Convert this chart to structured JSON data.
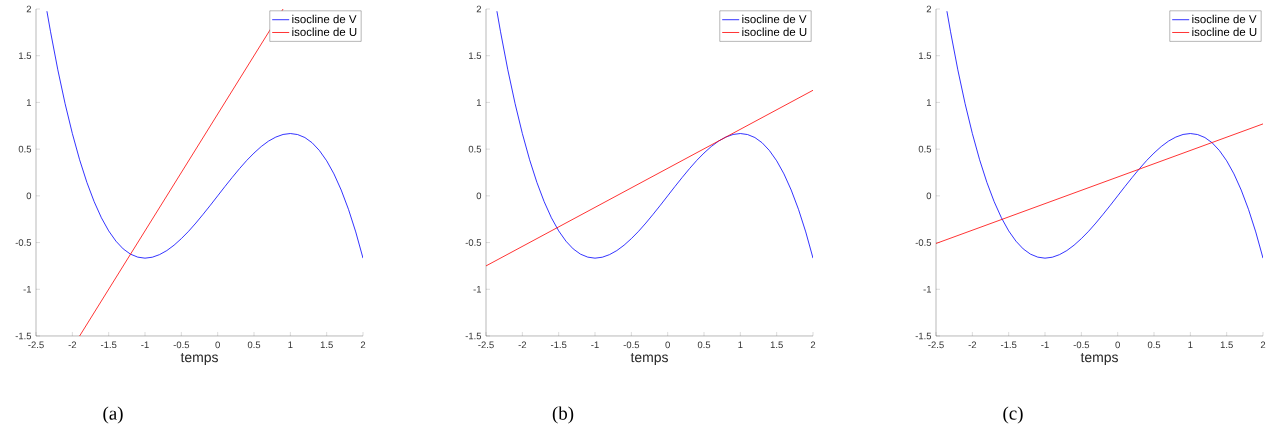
{
  "chart_data": [
    {
      "type": "line",
      "xlabel": "temps",
      "annotations": [
        "(a)"
      ],
      "legend": "top right",
      "grid": false,
      "xlim": [
        -2.5,
        2
      ],
      "ylim": [
        -1.5,
        2
      ],
      "xticks": [
        -2.5,
        -2,
        -1.5,
        -1,
        -0.5,
        0,
        0.5,
        1,
        1.5,
        2
      ],
      "yticks": [
        -1.5,
        -1,
        -0.5,
        0,
        0.5,
        1,
        1.5,
        2
      ],
      "series": [
        {
          "name": "isocline de V",
          "color": "#0000ff",
          "x": [
            -2.35,
            -2.3,
            -2.2,
            -2.1,
            -2.0,
            -1.9,
            -1.8,
            -1.7,
            -1.6,
            -1.5,
            -1.4,
            -1.3,
            -1.2,
            -1.1,
            -1.0,
            -0.9,
            -0.8,
            -0.7,
            -0.6,
            -0.5,
            -0.4,
            -0.3,
            -0.2,
            -0.1,
            0,
            0.1,
            0.2,
            0.3,
            0.4,
            0.5,
            0.6,
            0.7,
            0.8,
            0.9,
            1.0,
            1.1,
            1.2,
            1.3,
            1.4,
            1.5,
            1.6,
            1.7,
            1.8,
            1.9,
            2.0
          ],
          "values": [
            1.976,
            1.756,
            1.349,
            0.987,
            0.667,
            0.386,
            0.144,
            -0.062,
            -0.235,
            -0.375,
            -0.485,
            -0.568,
            -0.624,
            -0.656,
            -0.667,
            -0.657,
            -0.629,
            -0.586,
            -0.528,
            -0.458,
            -0.379,
            -0.291,
            -0.197,
            -0.1,
            0,
            0.1,
            0.197,
            0.291,
            0.379,
            0.458,
            0.528,
            0.586,
            0.629,
            0.657,
            0.667,
            0.656,
            0.624,
            0.568,
            0.485,
            0.375,
            0.235,
            0.062,
            -0.144,
            -0.386,
            -0.667
          ]
        },
        {
          "name": "isocline de U",
          "color": "#ff0000",
          "x": [
            -1.9,
            0.9
          ],
          "values": [
            -1.5,
            2
          ]
        }
      ]
    },
    {
      "type": "line",
      "xlabel": "temps",
      "annotations": [
        "(b)"
      ],
      "legend": "top right",
      "grid": false,
      "xlim": [
        -2.5,
        2
      ],
      "ylim": [
        -1.5,
        2
      ],
      "xticks": [
        -2.5,
        -2,
        -1.5,
        -1,
        -0.5,
        0,
        0.5,
        1,
        1.5,
        2
      ],
      "yticks": [
        -1.5,
        -1,
        -0.5,
        0,
        0.5,
        1,
        1.5,
        2
      ],
      "series": [
        {
          "name": "isocline de V",
          "color": "#0000ff",
          "x": [
            -2.35,
            -2.3,
            -2.2,
            -2.1,
            -2.0,
            -1.9,
            -1.8,
            -1.7,
            -1.6,
            -1.5,
            -1.4,
            -1.3,
            -1.2,
            -1.1,
            -1.0,
            -0.9,
            -0.8,
            -0.7,
            -0.6,
            -0.5,
            -0.4,
            -0.3,
            -0.2,
            -0.1,
            0,
            0.1,
            0.2,
            0.3,
            0.4,
            0.5,
            0.6,
            0.7,
            0.8,
            0.9,
            1.0,
            1.1,
            1.2,
            1.3,
            1.4,
            1.5,
            1.6,
            1.7,
            1.8,
            1.9,
            2.0
          ],
          "values": [
            1.976,
            1.756,
            1.349,
            0.987,
            0.667,
            0.386,
            0.144,
            -0.062,
            -0.235,
            -0.375,
            -0.485,
            -0.568,
            -0.624,
            -0.656,
            -0.667,
            -0.657,
            -0.629,
            -0.586,
            -0.528,
            -0.458,
            -0.379,
            -0.291,
            -0.197,
            -0.1,
            0,
            0.1,
            0.197,
            0.291,
            0.379,
            0.458,
            0.528,
            0.586,
            0.629,
            0.657,
            0.667,
            0.656,
            0.624,
            0.568,
            0.485,
            0.375,
            0.235,
            0.062,
            -0.144,
            -0.386,
            -0.667
          ]
        },
        {
          "name": "isocline de U",
          "color": "#ff0000",
          "x": [
            -2.5,
            2
          ],
          "values": [
            -0.75,
            1.13
          ]
        }
      ]
    },
    {
      "type": "line",
      "xlabel": "temps",
      "annotations": [
        "(c)"
      ],
      "legend": "top right",
      "grid": false,
      "xlim": [
        -2.5,
        2
      ],
      "ylim": [
        -1.5,
        2
      ],
      "xticks": [
        -2.5,
        -2,
        -1.5,
        -1,
        -0.5,
        0,
        0.5,
        1,
        1.5,
        2
      ],
      "yticks": [
        -1.5,
        -1,
        -0.5,
        0,
        0.5,
        1,
        1.5,
        2
      ],
      "series": [
        {
          "name": "isocline de V",
          "color": "#0000ff",
          "x": [
            -2.35,
            -2.3,
            -2.2,
            -2.1,
            -2.0,
            -1.9,
            -1.8,
            -1.7,
            -1.6,
            -1.5,
            -1.4,
            -1.3,
            -1.2,
            -1.1,
            -1.0,
            -0.9,
            -0.8,
            -0.7,
            -0.6,
            -0.5,
            -0.4,
            -0.3,
            -0.2,
            -0.1,
            0,
            0.1,
            0.2,
            0.3,
            0.4,
            0.5,
            0.6,
            0.7,
            0.8,
            0.9,
            1.0,
            1.1,
            1.2,
            1.3,
            1.4,
            1.5,
            1.6,
            1.7,
            1.8,
            1.9,
            2.0
          ],
          "values": [
            1.976,
            1.756,
            1.349,
            0.987,
            0.667,
            0.386,
            0.144,
            -0.062,
            -0.235,
            -0.375,
            -0.485,
            -0.568,
            -0.624,
            -0.656,
            -0.667,
            -0.657,
            -0.629,
            -0.586,
            -0.528,
            -0.458,
            -0.379,
            -0.291,
            -0.197,
            -0.1,
            0,
            0.1,
            0.197,
            0.291,
            0.379,
            0.458,
            0.528,
            0.586,
            0.629,
            0.657,
            0.667,
            0.656,
            0.624,
            0.568,
            0.485,
            0.375,
            0.235,
            0.062,
            -0.144,
            -0.386,
            -0.667
          ]
        },
        {
          "name": "isocline de U",
          "color": "#ff0000",
          "x": [
            -2.5,
            2
          ],
          "values": [
            -0.51,
            0.77
          ]
        }
      ]
    }
  ]
}
